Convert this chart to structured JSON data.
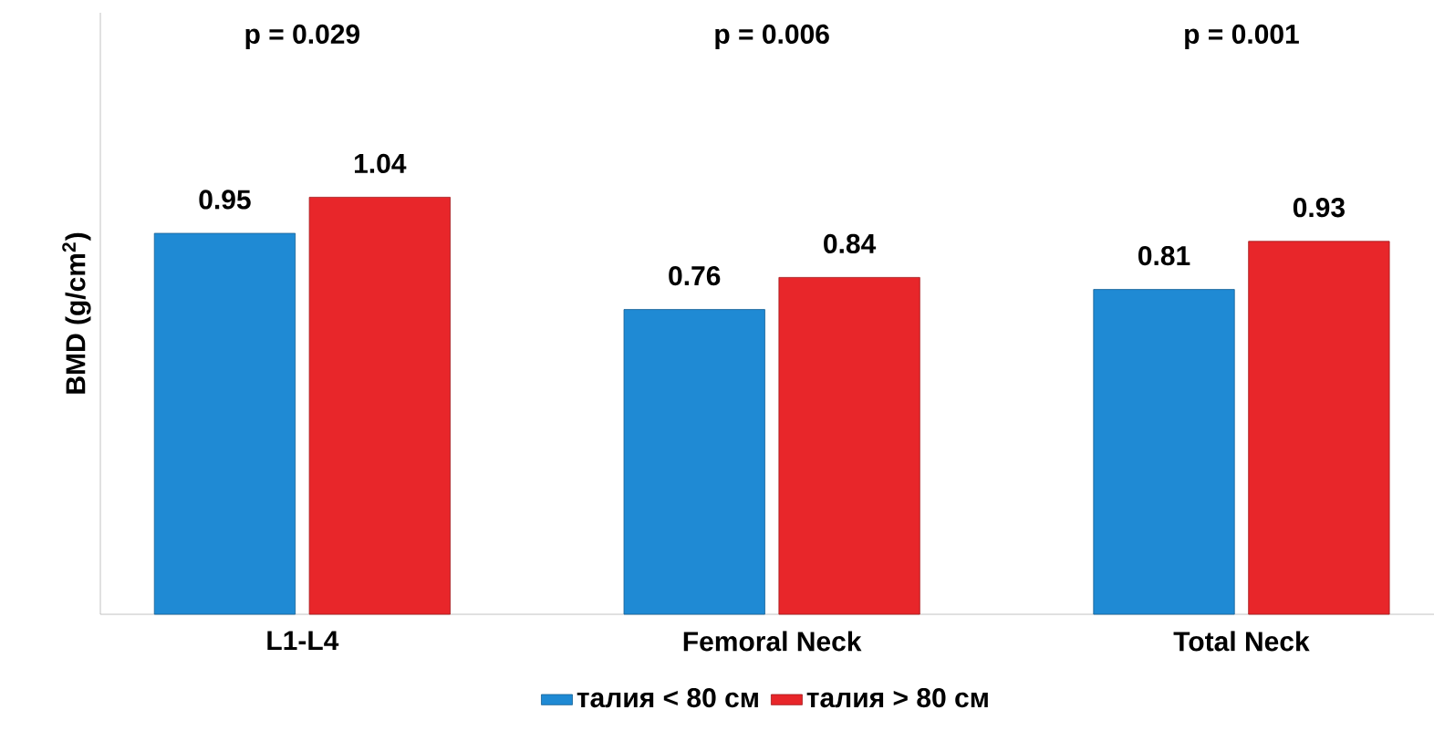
{
  "chart_data": {
    "type": "bar",
    "ylabel": "BMD (g/cm$^{2}$)",
    "categories": [
      "L1-L4",
      "Femoral Neck",
      "Total Neck"
    ],
    "series": [
      {
        "name": "талия < 80 см",
        "color": "#1f8ad4",
        "values": [
          0.95,
          0.76,
          0.81
        ]
      },
      {
        "name": "талия > 80 см",
        "color": "#e8262a",
        "values": [
          1.04,
          0.84,
          0.93
        ]
      }
    ],
    "ylim": [
      0,
      1.5
    ],
    "data_labels": true,
    "legend": "bottom",
    "annotations": [
      "p = 0.029",
      "p = 0.006",
      "p = 0.001"
    ]
  }
}
